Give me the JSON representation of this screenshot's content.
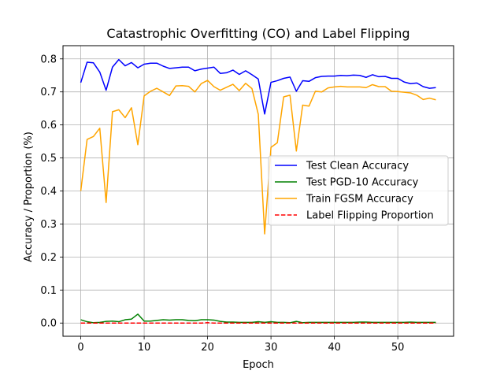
{
  "chart_data": {
    "type": "line",
    "title": "Catastrophic Overfitting (CO) and Label Flipping",
    "xlabel": "Epoch",
    "ylabel": "Accuracy / Proportion (%)",
    "xlim": [
      -2.8,
      58.8
    ],
    "ylim": [
      -0.04,
      0.84
    ],
    "xticks": [
      0,
      10,
      20,
      30,
      40,
      50
    ],
    "yticks": [
      0.0,
      0.1,
      0.2,
      0.3,
      0.4,
      0.5,
      0.6,
      0.7,
      0.8
    ],
    "grid": true,
    "legend_position": "center-right",
    "x": [
      0,
      1,
      2,
      3,
      4,
      5,
      6,
      7,
      8,
      9,
      10,
      11,
      12,
      13,
      14,
      15,
      16,
      17,
      18,
      19,
      20,
      21,
      22,
      23,
      24,
      25,
      26,
      27,
      28,
      29,
      30,
      31,
      32,
      33,
      34,
      35,
      36,
      37,
      38,
      39,
      40,
      41,
      42,
      43,
      44,
      45,
      46,
      47,
      48,
      49,
      50,
      51,
      52,
      53,
      54,
      55,
      56
    ],
    "series": [
      {
        "name": "Test Clean Accuracy",
        "color": "#0000ff",
        "dash": "solid",
        "values": [
          0.728,
          0.79,
          0.788,
          0.76,
          0.705,
          0.775,
          0.798,
          0.779,
          0.789,
          0.773,
          0.784,
          0.787,
          0.787,
          0.778,
          0.771,
          0.773,
          0.775,
          0.775,
          0.764,
          0.769,
          0.772,
          0.775,
          0.756,
          0.758,
          0.766,
          0.753,
          0.764,
          0.752,
          0.739,
          0.633,
          0.729,
          0.734,
          0.741,
          0.745,
          0.702,
          0.734,
          0.732,
          0.743,
          0.747,
          0.748,
          0.748,
          0.75,
          0.749,
          0.751,
          0.75,
          0.744,
          0.752,
          0.746,
          0.747,
          0.741,
          0.741,
          0.73,
          0.725,
          0.727,
          0.716,
          0.711,
          0.713
        ]
      },
      {
        "name": "Test PGD-10 Accuracy",
        "color": "#008000",
        "dash": "solid",
        "values": [
          0.01,
          0.004,
          0.001,
          0.002,
          0.005,
          0.006,
          0.004,
          0.01,
          0.012,
          0.027,
          0.006,
          0.006,
          0.008,
          0.01,
          0.009,
          0.01,
          0.01,
          0.008,
          0.007,
          0.01,
          0.01,
          0.009,
          0.005,
          0.003,
          0.003,
          0.002,
          0.002,
          0.002,
          0.004,
          0.002,
          0.004,
          0.002,
          0.002,
          0.001,
          0.005,
          0.001,
          0.002,
          0.002,
          0.002,
          0.002,
          0.002,
          0.002,
          0.002,
          0.002,
          0.003,
          0.003,
          0.002,
          0.002,
          0.002,
          0.002,
          0.002,
          0.002,
          0.003,
          0.002,
          0.002,
          0.002,
          0.002
        ]
      },
      {
        "name": "Train FGSM Accuracy",
        "color": "#ffa500",
        "dash": "solid",
        "values": [
          0.4,
          0.556,
          0.565,
          0.59,
          0.365,
          0.64,
          0.646,
          0.622,
          0.652,
          0.54,
          0.688,
          0.702,
          0.711,
          0.7,
          0.689,
          0.718,
          0.719,
          0.717,
          0.7,
          0.725,
          0.735,
          0.716,
          0.705,
          0.714,
          0.723,
          0.704,
          0.726,
          0.71,
          0.632,
          0.27,
          0.532,
          0.546,
          0.685,
          0.69,
          0.521,
          0.66,
          0.657,
          0.702,
          0.7,
          0.712,
          0.715,
          0.717,
          0.715,
          0.715,
          0.715,
          0.713,
          0.722,
          0.716,
          0.716,
          0.702,
          0.701,
          0.699,
          0.697,
          0.69,
          0.677,
          0.681,
          0.676
        ]
      },
      {
        "name": "Label Flipping Proportion",
        "color": "#ff0000",
        "dash": "dashed",
        "values": [
          0.0,
          0.0,
          0.0,
          0.0,
          0.0,
          0.0,
          0.0,
          0.0,
          0.0,
          0.0,
          0.0,
          0.0,
          0.0,
          0.0,
          0.0,
          0.0,
          0.0,
          0.0,
          0.0,
          0.0,
          0.001,
          0.0,
          0.0,
          0.0,
          0.0,
          0.0,
          0.0,
          0.0,
          0.0,
          0.0,
          0.0,
          0.0,
          0.0,
          0.0,
          0.0,
          0.0,
          0.0,
          0.0,
          0.0,
          0.0,
          0.0,
          0.0,
          0.0,
          0.0,
          0.0,
          0.0,
          0.0,
          0.0,
          0.0,
          0.0,
          0.0,
          0.0,
          0.0,
          0.0,
          0.0,
          0.0,
          0.0
        ]
      }
    ]
  }
}
